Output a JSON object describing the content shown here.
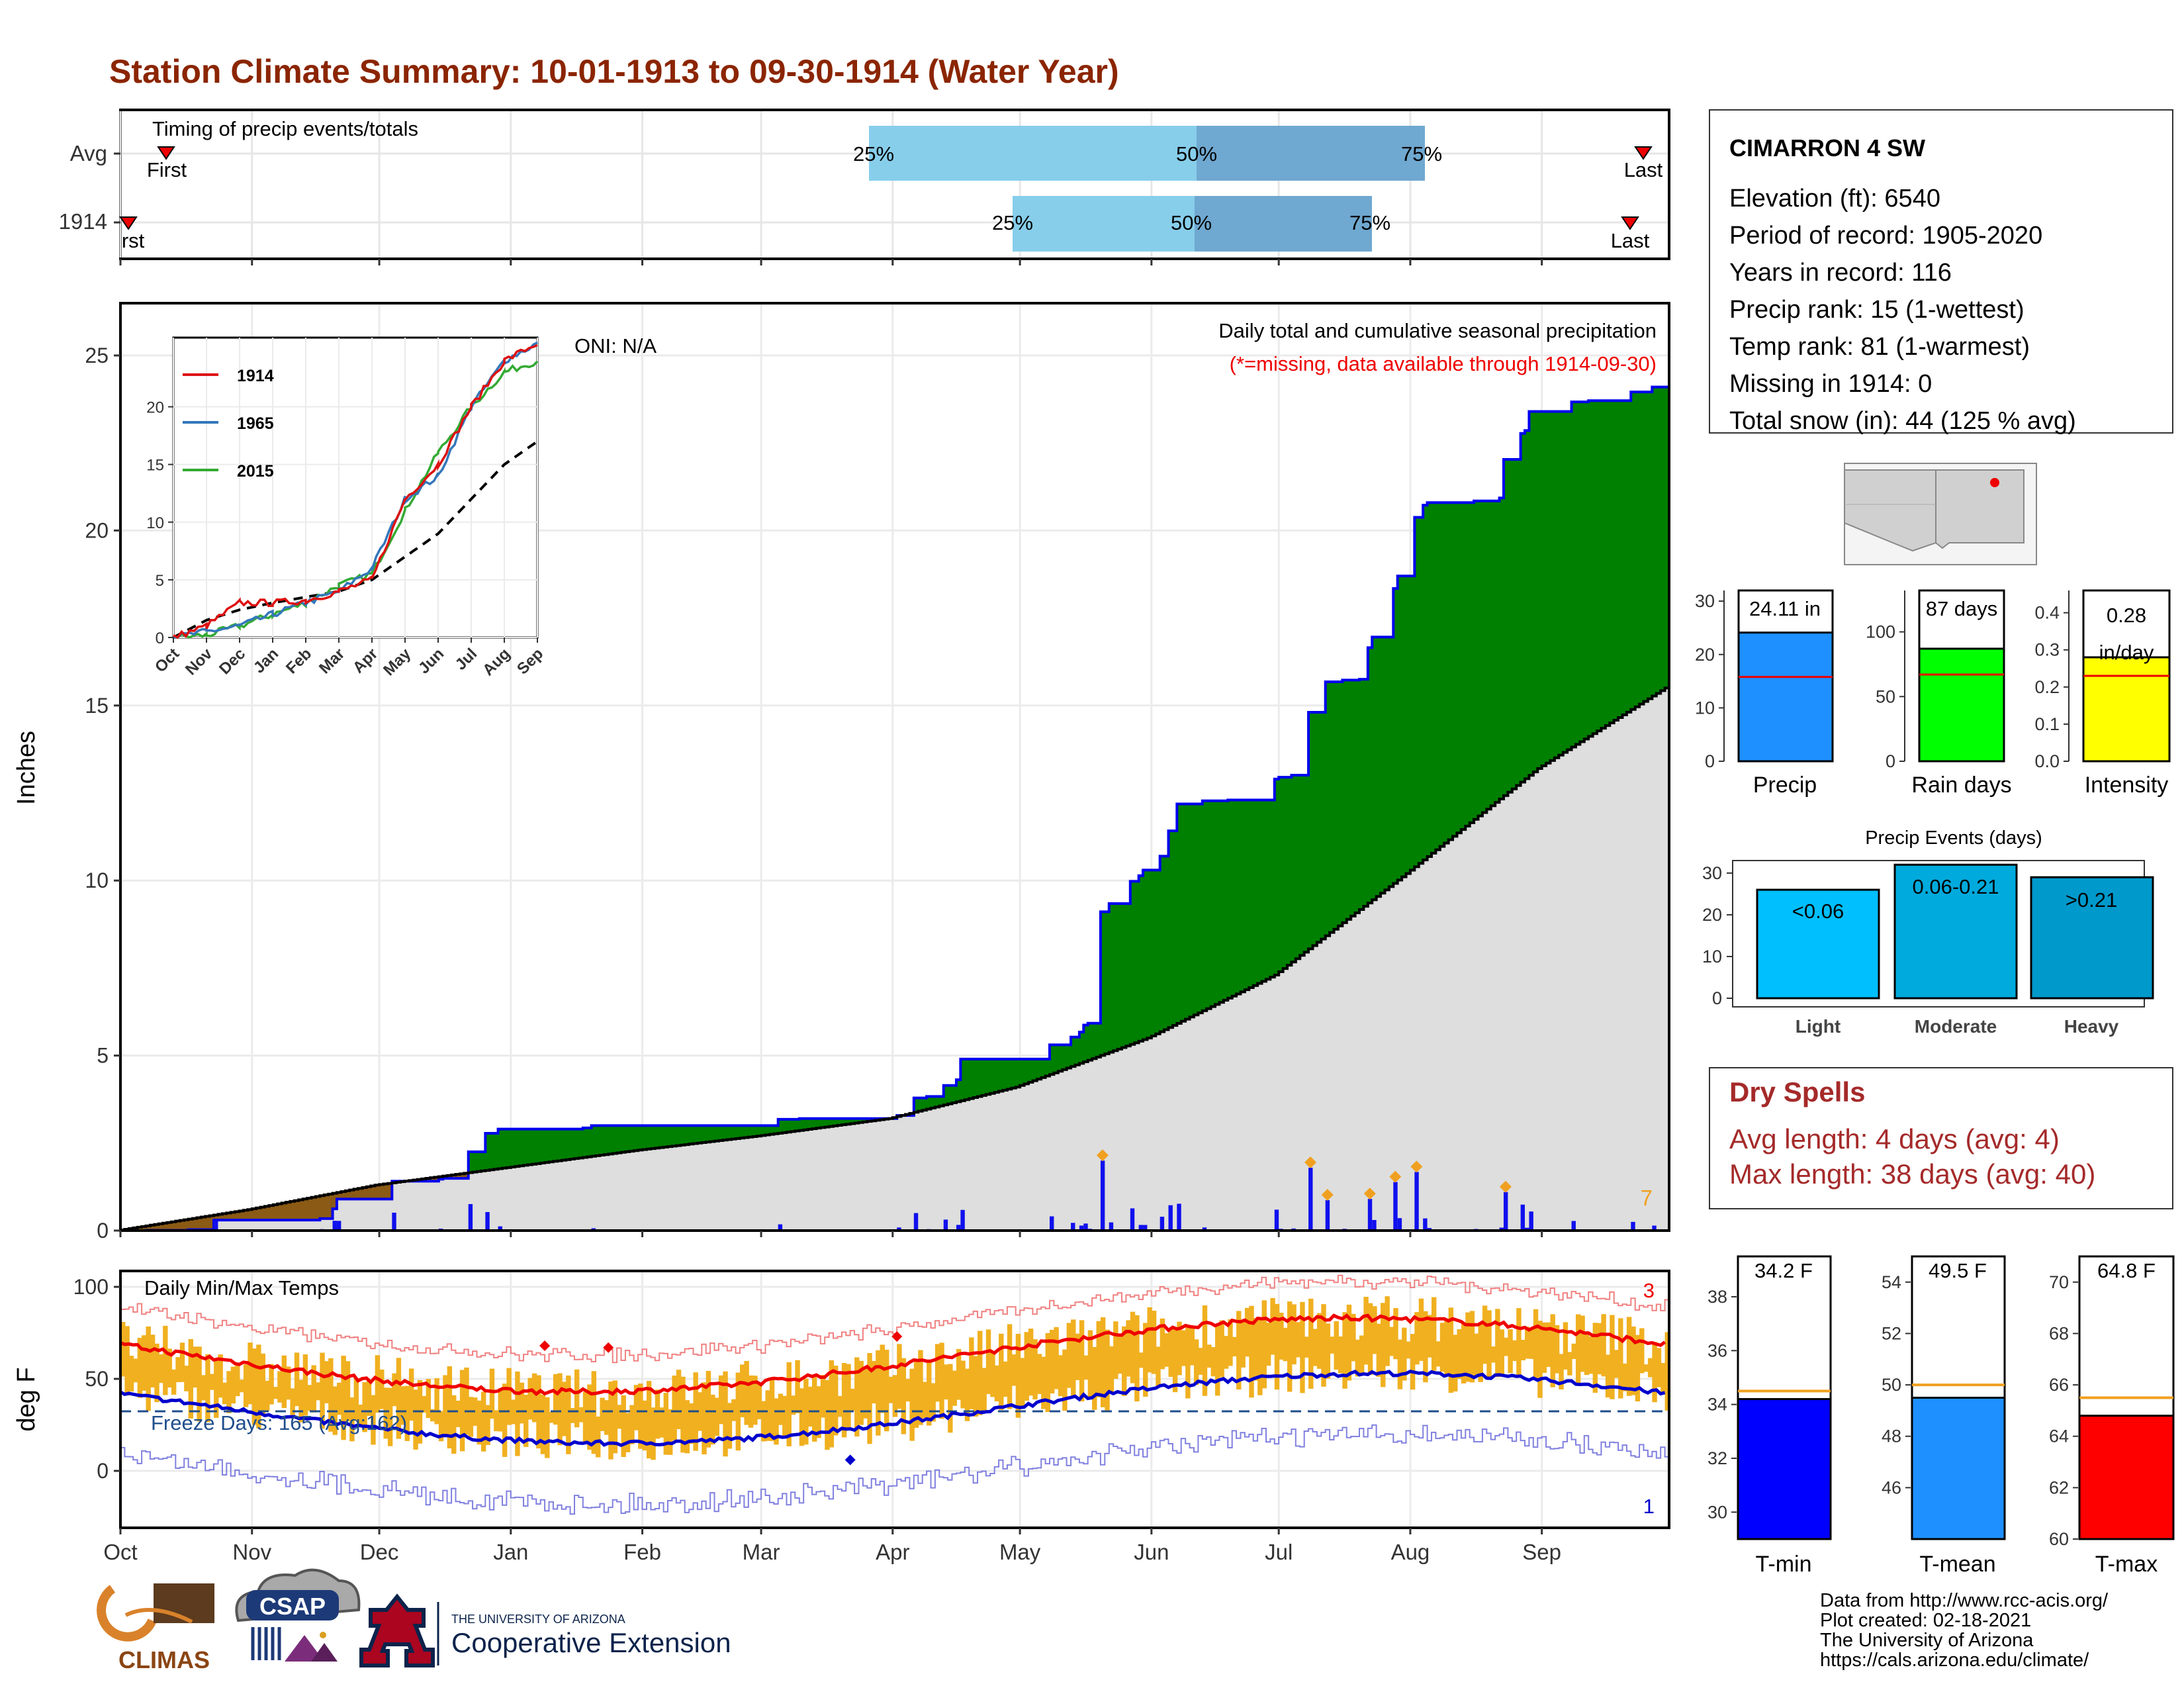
{
  "title": "Station Climate Summary: 10-01-1913 to 09-30-1914 (Water Year)",
  "colors": {
    "title": "#8b2500",
    "cum_fill": "#008000",
    "deficit_fill": "#8b5a14",
    "normal_fill": "#dedede",
    "cum_line": "#0000ee",
    "temp_bar": "#f0b020",
    "tmax_line": "#ee0000",
    "tmin_line": "#0000cc",
    "light_blue": "#87ceeb",
    "steel_blue": "#6fa8d0",
    "precip_bar": "#1e90ff",
    "rain_bar": "#00ff00",
    "intensity_bar": "#ffff00",
    "dry_text": "#a52a2a"
  },
  "timing": {
    "title": "Timing of precip events/totals",
    "rows": [
      {
        "label": "Avg",
        "first": "First",
        "last": "Last",
        "q25": "25%",
        "q50": "50%",
        "q75": "75%"
      },
      {
        "label": "1914",
        "first": "First",
        "last": "Last",
        "q25": "25%",
        "q50": "50%",
        "q75": "75%"
      }
    ]
  },
  "precip_panel": {
    "ylabel": "Inches",
    "yticks": [
      "0",
      "5",
      "10",
      "15",
      "20",
      "25"
    ],
    "legend_title": "Daily total and cumulative seasonal precipitation",
    "missing_note": "(*=missing, data available through 1914-09-30)",
    "oni": "ONI: N/A",
    "extremes_count": "7"
  },
  "temp_panel": {
    "ylabel": "deg F",
    "title": "Daily Min/Max Temps",
    "yticks": [
      "0",
      "50",
      "100"
    ],
    "freeze_days": "Freeze Days: 165 (Avg:162)",
    "record_high_count": "3",
    "record_low_count": "1"
  },
  "months": [
    "Oct",
    "Nov",
    "Dec",
    "Jan",
    "Feb",
    "Mar",
    "Apr",
    "May",
    "Jun",
    "Jul",
    "Aug",
    "Sep"
  ],
  "chart_data": {
    "type": "area",
    "x": [
      "Oct",
      "Nov",
      "Dec",
      "Jan",
      "Feb",
      "Mar",
      "Apr",
      "May",
      "Jun",
      "Jul",
      "Aug",
      "Sep"
    ],
    "series": [
      {
        "name": "1914 cumulative",
        "values": [
          0.3,
          0.9,
          2.9,
          3.0,
          3.0,
          3.2,
          4.9,
          10.3,
          12.9,
          18.7,
          23.4,
          24.1
        ]
      },
      {
        "name": "avg cumulative",
        "values": [
          0.6,
          1.3,
          1.8,
          2.3,
          2.7,
          3.2,
          4.1,
          5.5,
          7.3,
          10.2,
          13.2,
          15.5
        ]
      }
    ],
    "ylim": [
      0,
      26
    ]
  },
  "inset": {
    "legend": [
      "1914",
      "1965",
      "2015"
    ],
    "months": [
      "Oct",
      "Nov",
      "Dec",
      "Jan",
      "Feb",
      "Mar",
      "Apr",
      "May",
      "Jun",
      "Jul",
      "Aug",
      "Sep"
    ],
    "yticks": [
      "0",
      "5",
      "10",
      "15",
      "20"
    ],
    "series_1914": [
      0,
      1,
      3,
      3,
      3.2,
      4,
      5,
      12,
      15,
      20,
      24,
      25.5
    ],
    "series_1965": [
      0,
      0.5,
      1,
      2,
      3,
      4,
      6,
      12,
      14,
      20,
      24,
      25.5
    ],
    "series_2015": [
      0,
      0.2,
      1,
      2,
      3,
      4.5,
      5.5,
      11,
      16,
      20,
      23,
      24
    ],
    "series_avg": [
      0,
      1.5,
      2.4,
      3,
      3.5,
      4,
      5,
      7,
      9,
      12,
      15,
      17
    ]
  },
  "station": {
    "name": "CIMARRON 4 SW",
    "elevation": "Elevation (ft): 6540",
    "period": "Period of record: 1905-2020",
    "years": "Years in record: 116",
    "precip_rank": "Precip rank: 15 (1-wettest)",
    "temp_rank": "Temp rank: 81 (1-warmest)",
    "missing": "Missing in 1914: 0",
    "snow": "Total snow (in): 44 (125 % avg)"
  },
  "bars": {
    "precip": {
      "label": "Precip",
      "value_label": "24.11 in",
      "value": 24.11,
      "avg": 15.8,
      "max": 32,
      "ticks": [
        "0",
        "10",
        "20",
        "30"
      ]
    },
    "raindays": {
      "label": "Rain days",
      "value_label": "87 days",
      "value": 87,
      "avg": 67,
      "max": 132,
      "ticks": [
        "0",
        "50",
        "100"
      ]
    },
    "intensity": {
      "label": "Intensity",
      "value_label": "0.28",
      "value_label2": "in/day",
      "value": 0.28,
      "avg": 0.23,
      "max": 0.46,
      "ticks": [
        "0.0",
        "0.1",
        "0.2",
        "0.3",
        "0.4"
      ]
    }
  },
  "events": {
    "title": "Precip Events (days)",
    "ticks": [
      "0",
      "10",
      "20",
      "30"
    ],
    "max": 33,
    "items": [
      {
        "label": "Light",
        "value_label": "<0.06",
        "value": 26
      },
      {
        "label": "Moderate",
        "value_label": "0.06-0.21",
        "value": 32
      },
      {
        "label": "Heavy",
        "value_label": ">0.21",
        "value": 29
      }
    ]
  },
  "dry_spells": {
    "title": "Dry Spells",
    "avg": "Avg length: 4 days (avg: 4)",
    "max": "Max length: 38 days (avg: 40)"
  },
  "temps": {
    "tmin": {
      "label": "T-min",
      "value_label": "34.2 F",
      "value": 34.2,
      "avg": 34.5,
      "min": 29,
      "max": 39.5,
      "ticks": [
        "30",
        "32",
        "34",
        "36",
        "38"
      ],
      "tick_vals": [
        30,
        32,
        34,
        36,
        38
      ]
    },
    "tmean": {
      "label": "T-mean",
      "value_label": "49.5 F",
      "value": 49.5,
      "avg": 50,
      "min": 44,
      "max": 55,
      "ticks": [
        "46",
        "48",
        "50",
        "52",
        "54"
      ],
      "tick_vals": [
        46,
        48,
        50,
        52,
        54
      ]
    },
    "tmax": {
      "label": "T-max",
      "value_label": "64.8 F",
      "value": 64.8,
      "avg": 65.5,
      "min": 60,
      "max": 71,
      "ticks": [
        "60",
        "62",
        "64",
        "66",
        "68",
        "70"
      ],
      "tick_vals": [
        60,
        62,
        64,
        66,
        68,
        70
      ]
    }
  },
  "footer": {
    "line1": "Data from http://www.rcc-acis.org/",
    "line2": "Plot created: 02-18-2021",
    "line3": "The University of Arizona",
    "line4": "https://cals.arizona.edu/climate/",
    "climas": "CLIMAS",
    "csap": "CSAP",
    "ua_top": "THE UNIVERSITY OF ARIZONA",
    "ua_main": "Cooperative Extension"
  }
}
